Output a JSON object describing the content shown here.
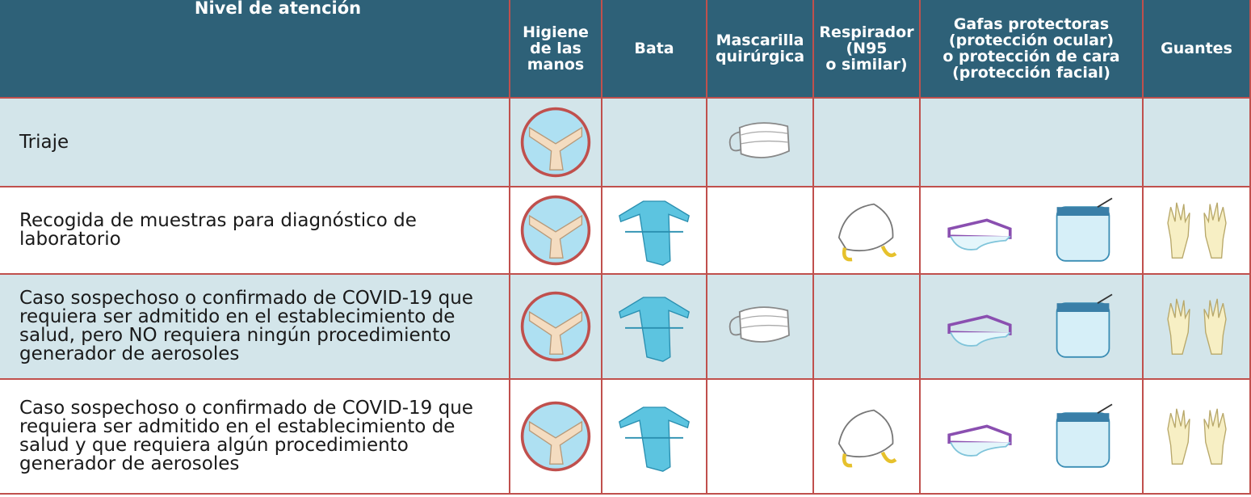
{
  "header": {
    "first_column": "Nivel de atención",
    "columns": [
      {
        "lines": [
          "Higiene",
          "de las",
          "manos"
        ]
      },
      {
        "lines": [
          "Bata"
        ]
      },
      {
        "lines": [
          "Mascarilla",
          "quirúrgica"
        ]
      },
      {
        "lines": [
          "Respirador",
          "(N95",
          "o similar)"
        ]
      },
      {
        "lines": [
          "Gafas protectoras",
          "(protección ocular)",
          "o protección de cara",
          "(protección facial)"
        ]
      },
      {
        "lines": [
          "Guantes"
        ]
      }
    ]
  },
  "rows": [
    {
      "label": "Triaje"
    },
    {
      "label": "Recogida de muestras para diagnóstico de laboratorio"
    },
    {
      "label": "Caso sospechoso o confirmado de COVID-19 que requiera ser admitido en el establecimiento de salud, pero NO requiera ningún procedimiento generador de aerosoles"
    },
    {
      "label": "Caso sospechoso o confirmado de COVID-19 que requiera ser admitido en el establecimiento de salud y que requiera algún procedimiento generador de aerosoles"
    }
  ]
}
